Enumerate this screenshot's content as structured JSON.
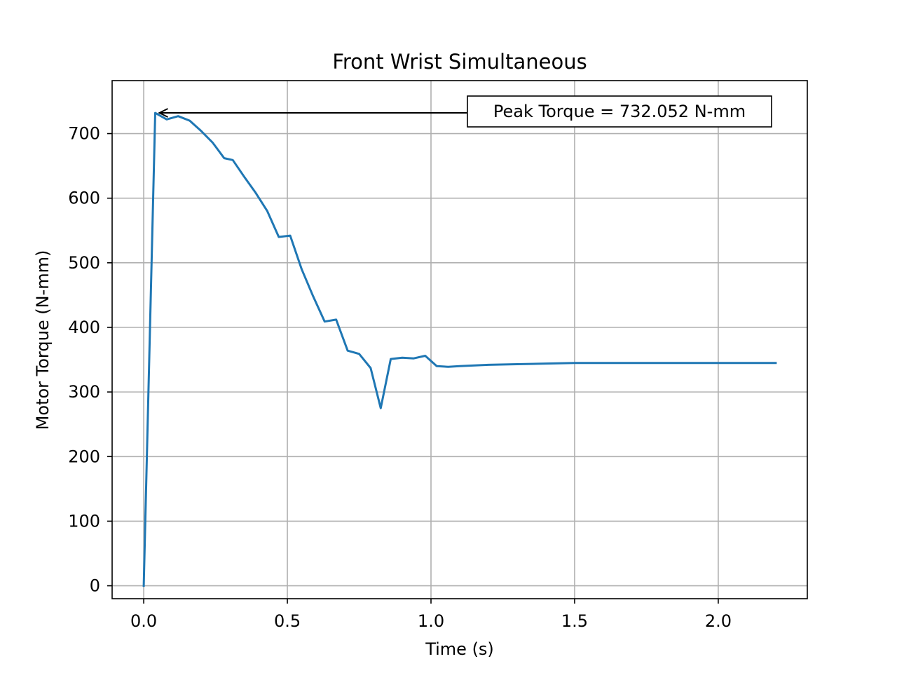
{
  "chart_data": {
    "type": "line",
    "title": "Front Wrist Simultaneous",
    "xlabel": "Time (s)",
    "ylabel": "Motor Torque (N-mm)",
    "xlim": [
      -0.11,
      2.31
    ],
    "ylim": [
      -20,
      782
    ],
    "xticks": [
      0.0,
      0.5,
      1.0,
      1.5,
      2.0
    ],
    "xtick_labels": [
      "0.0",
      "0.5",
      "1.0",
      "1.5",
      "2.0"
    ],
    "yticks": [
      0,
      100,
      200,
      300,
      400,
      500,
      600,
      700
    ],
    "ytick_labels": [
      "0",
      "100",
      "200",
      "300",
      "400",
      "500",
      "600",
      "700"
    ],
    "grid": true,
    "series": [
      {
        "color": "#1f77b4",
        "x": [
          0.0,
          0.04,
          0.08,
          0.12,
          0.16,
          0.2,
          0.24,
          0.28,
          0.31,
          0.35,
          0.39,
          0.43,
          0.47,
          0.51,
          0.55,
          0.59,
          0.63,
          0.67,
          0.71,
          0.75,
          0.79,
          0.825,
          0.86,
          0.9,
          0.94,
          0.98,
          1.02,
          1.06,
          1.1,
          1.2,
          1.3,
          1.4,
          1.5,
          1.6,
          1.7,
          1.8,
          1.9,
          2.0,
          2.1,
          2.2
        ],
        "y": [
          0,
          732,
          722,
          727,
          720,
          704,
          686,
          662,
          659,
          633,
          608,
          580,
          540,
          542,
          490,
          448,
          409,
          412,
          364,
          359,
          337,
          275,
          351,
          353,
          352,
          356,
          340,
          339,
          340,
          342,
          343,
          344,
          345,
          345,
          345,
          345,
          345,
          345,
          345,
          345
        ]
      }
    ],
    "annotation": {
      "text": "Peak Torque = 732.052 N-mm",
      "point_x": 0.04,
      "point_y": 732.052
    }
  }
}
